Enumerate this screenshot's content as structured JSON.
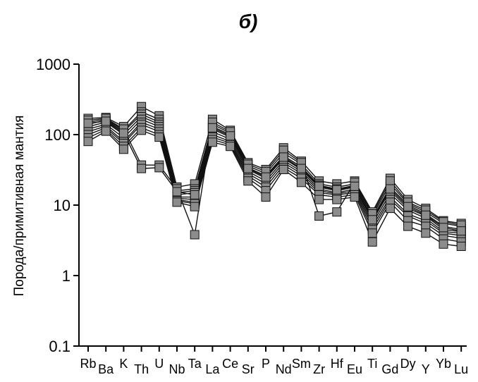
{
  "chart_data": {
    "type": "line",
    "title": "б)",
    "ylabel": "Порода/примитивная мантия",
    "xlabel": "",
    "yscale": "log",
    "ylim": [
      0.1,
      1000
    ],
    "yticks": [
      "1000",
      "100",
      "10",
      "1",
      "0.1"
    ],
    "categories": [
      "Rb",
      "Ba",
      "K",
      "Th",
      "U",
      "Nb",
      "Ta",
      "La",
      "Ce",
      "Sr",
      "P",
      "Nd",
      "Sm",
      "Zr",
      "Hf",
      "Eu",
      "Ti",
      "Gd",
      "Dy",
      "Y",
      "Yb",
      "Lu"
    ],
    "colors": {
      "marker_fill": "#8c8c8c",
      "line": "#111111"
    },
    "series": [
      {
        "values": [
          170,
          175,
          130,
          250,
          185,
          18,
          20,
          165,
          115,
          40,
          32,
          65,
          42,
          22,
          20,
          22,
          8,
          24,
          12,
          9,
          6,
          5.5
        ]
      },
      {
        "values": [
          150,
          165,
          115,
          210,
          165,
          16,
          17,
          140,
          105,
          36,
          28,
          55,
          38,
          20,
          18,
          20,
          7,
          20,
          10.5,
          8,
          5.5,
          5
        ]
      },
      {
        "values": [
          140,
          160,
          110,
          195,
          150,
          15,
          16,
          130,
          100,
          34,
          26,
          50,
          35,
          19,
          17,
          19,
          6.5,
          18,
          10,
          7.5,
          5,
          4.5
        ]
      },
      {
        "values": [
          130,
          150,
          100,
          180,
          140,
          14,
          15,
          120,
          92,
          32,
          24,
          46,
          32,
          18,
          16,
          18,
          6,
          16,
          9,
          7,
          4.5,
          4.2
        ]
      },
      {
        "values": [
          120,
          140,
          90,
          165,
          130,
          13,
          13,
          110,
          86,
          30,
          22,
          43,
          30,
          17,
          15,
          17,
          5.5,
          14.5,
          8.5,
          6.5,
          4.2,
          4
        ]
      },
      {
        "values": [
          110,
          132,
          80,
          150,
          120,
          12.5,
          12,
          100,
          80,
          28,
          20,
          40,
          28,
          16,
          14.5,
          16,
          5,
          13,
          7.5,
          6,
          4,
          3.7
        ]
      },
      {
        "values": [
          100,
          125,
          75,
          140,
          110,
          12,
          11,
          92,
          76,
          26,
          18,
          37,
          26,
          15,
          14,
          15,
          4.5,
          12,
          7,
          5.5,
          3.7,
          3.4
        ]
      },
      {
        "values": [
          90,
          118,
          68,
          125,
          100,
          11.5,
          10.5,
          85,
          72,
          24,
          16,
          34,
          24,
          14,
          13,
          14,
          4,
          11,
          6,
          5,
          3.3,
          3
        ]
      },
      {
        "values": [
          80,
          112,
          62,
          115,
          92,
          11,
          9.5,
          78,
          68,
          22,
          13,
          32,
          21,
          12,
          12,
          13,
          3,
          9,
          5,
          4,
          2.8,
          2.6
        ]
      },
      {
        "values": [
          160,
          170,
          120,
          37,
          37,
          17,
          3.8,
          150,
          110,
          38,
          30,
          60,
          40,
          7,
          8,
          21,
          7.5,
          22,
          11,
          8.5,
          5.8,
          5.2
        ]
      },
      {
        "values": [
          145,
          155,
          105,
          33,
          34,
          15.5,
          14,
          125,
          96,
          33,
          25,
          48,
          33,
          18.5,
          16.5,
          18.5,
          6.2,
          17,
          9.5,
          7.2,
          4.8,
          4.3
        ]
      }
    ]
  }
}
